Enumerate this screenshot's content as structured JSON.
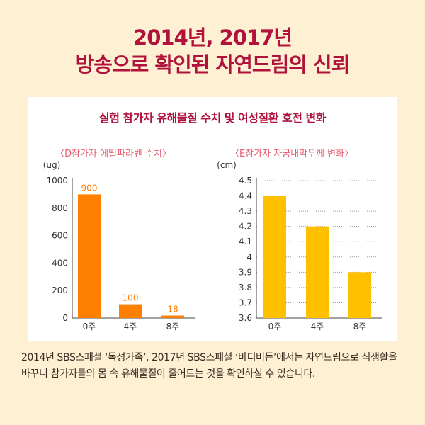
{
  "header": {
    "title_line1": "2014년, 2017년",
    "title_line2": "방송으로 확인된 자연드림의 신뢰"
  },
  "panel": {
    "title": "실험 참가자 유해물질 수치 및 여성질환 호전 변화"
  },
  "description": "2014년 SBS스페셜 ‘독성가족’, 2017년 SBS스페셜 ‘바디버든’에서는 자연드림으로 식생활을 바꾸니 참가자들의 몸 속 유해물질이 줄어드는 것을 확인하실 수 있습니다.",
  "colors": {
    "title": "#b0123c",
    "bar_left": "#ff7f00",
    "bar_right": "#ffc000",
    "subtitle": "#e85a6c",
    "background": "#fdf0d3"
  },
  "chart_data": [
    {
      "type": "bar",
      "title": "〈D참가자 에틸파라벤 수치〉",
      "ylabel": "(ug)",
      "categories": [
        "0주",
        "4주",
        "8주"
      ],
      "values": [
        900,
        100,
        18
      ],
      "data_labels": [
        "900",
        "100",
        "18"
      ],
      "ylim": [
        0,
        1000
      ],
      "yticks": [
        "1000",
        "800",
        "600",
        "400",
        "200",
        "0"
      ],
      "grid": false
    },
    {
      "type": "bar",
      "title": "〈E참가자 자궁내막두께 변화〉",
      "ylabel": "(cm)",
      "categories": [
        "0주",
        "4주",
        "8주"
      ],
      "values": [
        4.4,
        4.2,
        3.9
      ],
      "ylim": [
        3.6,
        4.5
      ],
      "yticks": [
        "4.5",
        "4.4",
        "4.3",
        "4.2",
        "4.1",
        "4",
        "3.9",
        "3.8",
        "3.7",
        "3.6"
      ],
      "grid": true
    }
  ]
}
